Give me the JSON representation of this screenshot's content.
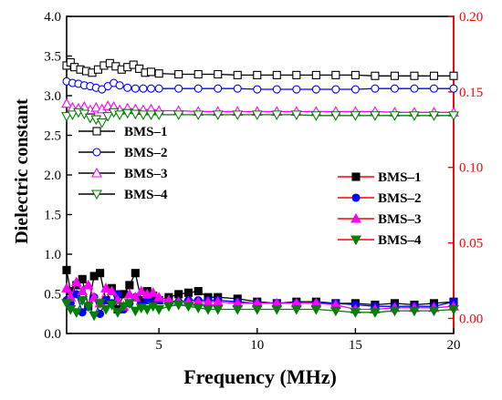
{
  "chart_data": {
    "type": "line",
    "title": "",
    "xlabel": "Frequency (MHz)",
    "ylabel_left": "Dielectric constant",
    "ylabel_right": "",
    "xlim": [
      0.3,
      20
    ],
    "ylim_left": [
      0.0,
      4.0
    ],
    "ylim_right": [
      -0.01,
      0.2
    ],
    "x_ticks": [
      5,
      10,
      15,
      20
    ],
    "x_tick_labels": [
      "5",
      "10",
      "15",
      "20"
    ],
    "y_left_ticks": [
      0.0,
      0.5,
      1.0,
      1.5,
      2.0,
      2.5,
      3.0,
      3.5,
      4.0
    ],
    "y_left_tick_labels": [
      "0.0",
      "0.5",
      "1.0",
      "1.5",
      "2.0",
      "2.5",
      "3.0",
      "3.5",
      "4.0"
    ],
    "y_right_ticks": [
      0.0,
      0.05,
      0.1,
      0.15,
      0.2
    ],
    "y_right_tick_labels": [
      "0.00",
      "0.05",
      "0.10",
      "0.15",
      "0.20"
    ],
    "right_axis_color": "#ff0000",
    "grid": false,
    "legend_left": {
      "placement": "center-left",
      "entries": [
        {
          "name": "BMS–1",
          "color": "#000000",
          "marker": "square-open"
        },
        {
          "name": "BMS–2",
          "color": "#0000ff",
          "marker": "circle-open"
        },
        {
          "name": "BMS–3",
          "color": "#ff00ff",
          "marker": "triangle-up-open"
        },
        {
          "name": "BMS–4",
          "color": "#008000",
          "marker": "triangle-down-open"
        }
      ]
    },
    "legend_right": {
      "placement": "center-right",
      "entries": [
        {
          "name": "BMS–1",
          "color": "#000000",
          "marker": "square-filled"
        },
        {
          "name": "BMS–2",
          "color": "#0000ff",
          "marker": "circle-filled"
        },
        {
          "name": "BMS–3",
          "color": "#ff00ff",
          "marker": "triangle-up-filled"
        },
        {
          "name": "BMS–4",
          "color": "#008000",
          "marker": "triangle-down-filled"
        }
      ]
    },
    "series": [
      {
        "name": "BMS–1",
        "axis": "left",
        "color": "#000000",
        "marker": "square-open",
        "x": [
          0.3,
          0.5,
          0.7,
          1.0,
          1.3,
          1.6,
          1.9,
          2.2,
          2.5,
          2.8,
          3.1,
          3.4,
          3.7,
          4.0,
          4.3,
          4.6,
          5,
          6,
          7,
          8,
          9,
          10,
          11,
          12,
          13,
          14,
          15,
          16,
          17,
          18,
          19,
          20
        ],
        "y": [
          3.38,
          3.42,
          3.36,
          3.33,
          3.31,
          3.29,
          3.33,
          3.38,
          3.41,
          3.37,
          3.33,
          3.36,
          3.39,
          3.34,
          3.29,
          3.3,
          3.28,
          3.27,
          3.27,
          3.27,
          3.26,
          3.26,
          3.26,
          3.26,
          3.26,
          3.26,
          3.26,
          3.25,
          3.25,
          3.25,
          3.25,
          3.25
        ]
      },
      {
        "name": "BMS–2",
        "axis": "left",
        "color": "#0000ff",
        "marker": "circle-open",
        "x": [
          0.3,
          0.6,
          0.9,
          1.2,
          1.5,
          1.8,
          2.1,
          2.4,
          2.7,
          3.0,
          3.4,
          3.8,
          4.2,
          4.6,
          5,
          6,
          7,
          8,
          9,
          10,
          11,
          12,
          13,
          14,
          15,
          16,
          17,
          18,
          19,
          20
        ],
        "y": [
          3.18,
          3.16,
          3.15,
          3.13,
          3.12,
          3.1,
          3.08,
          3.12,
          3.16,
          3.13,
          3.1,
          3.09,
          3.09,
          3.09,
          3.09,
          3.09,
          3.09,
          3.09,
          3.09,
          3.08,
          3.08,
          3.08,
          3.08,
          3.08,
          3.08,
          3.09,
          3.09,
          3.09,
          3.09,
          3.09
        ]
      },
      {
        "name": "BMS–3",
        "axis": "left",
        "color": "#ff00ff",
        "marker": "triangle-up-open",
        "x": [
          0.3,
          0.6,
          0.9,
          1.2,
          1.5,
          1.8,
          2.1,
          2.4,
          2.7,
          3.0,
          3.4,
          3.8,
          4.2,
          4.6,
          5,
          6,
          7,
          8,
          9,
          10,
          11,
          12,
          13,
          14,
          15,
          16,
          17,
          18,
          19,
          20
        ],
        "y": [
          2.9,
          2.85,
          2.84,
          2.86,
          2.82,
          2.85,
          2.83,
          2.87,
          2.86,
          2.82,
          2.84,
          2.83,
          2.82,
          2.83,
          2.81,
          2.81,
          2.8,
          2.8,
          2.8,
          2.8,
          2.8,
          2.8,
          2.8,
          2.8,
          2.8,
          2.8,
          2.79,
          2.79,
          2.79,
          2.79
        ]
      },
      {
        "name": "BMS–4",
        "axis": "left",
        "color": "#008000",
        "marker": "triangle-down-open",
        "x": [
          0.3,
          0.6,
          0.9,
          1.2,
          1.5,
          1.8,
          2.1,
          2.4,
          2.7,
          3.0,
          3.4,
          3.8,
          4.2,
          4.6,
          5,
          6,
          7,
          8,
          9,
          10,
          11,
          12,
          13,
          14,
          15,
          16,
          17,
          18,
          19,
          20
        ],
        "y": [
          2.74,
          2.76,
          2.79,
          2.77,
          2.72,
          2.7,
          2.66,
          2.74,
          2.79,
          2.76,
          2.78,
          2.77,
          2.76,
          2.76,
          2.76,
          2.76,
          2.76,
          2.76,
          2.76,
          2.76,
          2.76,
          2.76,
          2.75,
          2.75,
          2.75,
          2.75,
          2.75,
          2.75,
          2.75,
          2.75
        ]
      },
      {
        "name": "BMS–1",
        "axis": "right",
        "color": "#000000",
        "marker": "square-filled",
        "x": [
          0.3,
          0.5,
          0.8,
          1.1,
          1.4,
          1.7,
          2.0,
          2.3,
          2.6,
          2.9,
          3.2,
          3.5,
          3.8,
          4.1,
          4.4,
          4.7,
          5.0,
          5.5,
          6.0,
          6.5,
          7.0,
          7.5,
          8,
          9,
          10,
          11,
          12,
          13,
          14,
          15,
          16,
          17,
          18,
          19,
          20
        ],
        "y": [
          0.032,
          0.018,
          0.022,
          0.026,
          0.008,
          0.028,
          0.03,
          0.012,
          0.02,
          0.006,
          0.016,
          0.022,
          0.03,
          0.012,
          0.018,
          0.015,
          0.012,
          0.014,
          0.016,
          0.017,
          0.018,
          0.014,
          0.014,
          0.013,
          0.011,
          0.01,
          0.011,
          0.011,
          0.01,
          0.01,
          0.009,
          0.01,
          0.009,
          0.01,
          0.011
        ]
      },
      {
        "name": "BMS–2",
        "axis": "right",
        "color": "#0000ff",
        "marker": "circle-filled",
        "x": [
          0.3,
          0.5,
          0.8,
          1.1,
          1.4,
          1.7,
          2.0,
          2.3,
          2.6,
          2.9,
          3.2,
          3.5,
          3.8,
          4.1,
          4.4,
          4.7,
          5.0,
          5.5,
          6.0,
          6.5,
          7.0,
          7.5,
          8,
          9,
          10,
          11,
          12,
          13,
          14,
          15,
          16,
          17,
          18,
          19,
          20
        ],
        "y": [
          0.012,
          0.01,
          0.016,
          0.004,
          0.008,
          0.014,
          0.003,
          0.012,
          0.01,
          0.016,
          0.006,
          0.01,
          0.014,
          0.008,
          0.012,
          0.01,
          0.012,
          0.011,
          0.011,
          0.012,
          0.012,
          0.012,
          0.012,
          0.011,
          0.01,
          0.01,
          0.01,
          0.01,
          0.01,
          0.009,
          0.008,
          0.008,
          0.008,
          0.008,
          0.011
        ]
      },
      {
        "name": "BMS–3",
        "axis": "right",
        "color": "#ff00ff",
        "marker": "triangle-up-filled",
        "x": [
          0.3,
          0.5,
          0.8,
          1.1,
          1.4,
          1.7,
          2.0,
          2.3,
          2.6,
          2.9,
          3.2,
          3.5,
          3.8,
          4.1,
          4.4,
          4.7,
          5.0,
          5.5,
          6.0,
          6.5,
          7.0,
          7.5,
          8,
          9,
          10,
          11,
          12,
          13,
          14,
          15,
          16,
          17,
          18,
          19,
          20
        ],
        "y": [
          0.02,
          0.014,
          0.024,
          0.018,
          0.022,
          0.014,
          0.01,
          0.02,
          0.018,
          0.012,
          0.008,
          0.016,
          0.014,
          0.018,
          0.016,
          0.017,
          0.014,
          0.012,
          0.011,
          0.011,
          0.011,
          0.011,
          0.011,
          0.01,
          0.01,
          0.01,
          0.01,
          0.01,
          0.009,
          0.006,
          0.006,
          0.007,
          0.007,
          0.007,
          0.008
        ]
      },
      {
        "name": "BMS–4",
        "axis": "right",
        "color": "#008000",
        "marker": "triangle-down-filled",
        "x": [
          0.3,
          0.5,
          0.8,
          1.1,
          1.4,
          1.7,
          2.0,
          2.3,
          2.6,
          2.9,
          3.2,
          3.5,
          3.8,
          4.1,
          4.4,
          4.7,
          5.0,
          5.5,
          6.0,
          6.5,
          7.0,
          7.5,
          8,
          9,
          10,
          11,
          12,
          13,
          14,
          15,
          16,
          17,
          18,
          19,
          20
        ],
        "y": [
          0.01,
          0.006,
          0.004,
          0.012,
          0.008,
          0.002,
          0.01,
          0.006,
          0.009,
          0.004,
          0.008,
          0.01,
          0.005,
          0.007,
          0.006,
          0.008,
          0.006,
          0.008,
          0.009,
          0.008,
          0.007,
          0.006,
          0.006,
          0.006,
          0.006,
          0.006,
          0.006,
          0.006,
          0.005,
          0.004,
          0.004,
          0.005,
          0.005,
          0.005,
          0.006
        ]
      }
    ]
  }
}
